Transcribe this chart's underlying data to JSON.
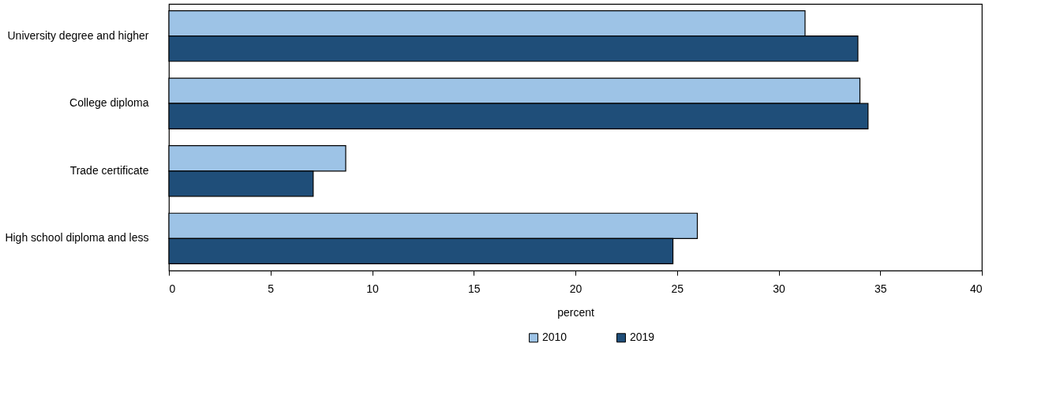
{
  "chart_data": {
    "type": "bar",
    "orientation": "horizontal",
    "categories": [
      "University degree and higher",
      "College diploma",
      "Trade certificate",
      "High school diploma and less"
    ],
    "series": [
      {
        "name": "2010",
        "color": "#9dc3e6",
        "values": [
          31.3,
          34.0,
          8.7,
          26.0
        ]
      },
      {
        "name": "2019",
        "color": "#1f4e79",
        "values": [
          33.9,
          34.4,
          7.1,
          24.8
        ]
      }
    ],
    "xlabel": "percent",
    "xlim": [
      0,
      40
    ],
    "xticks": [
      0,
      5,
      10,
      15,
      20,
      25,
      30,
      35,
      40
    ],
    "grid": false,
    "legend": "bottom"
  }
}
